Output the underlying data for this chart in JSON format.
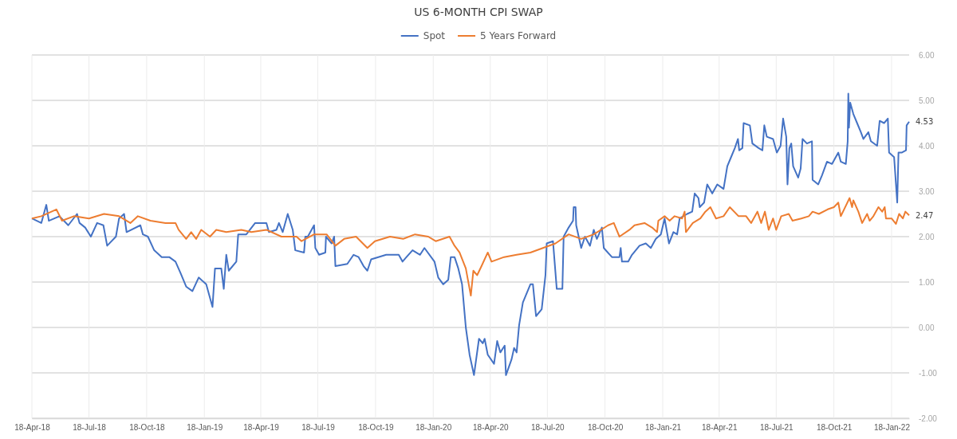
{
  "chart_data": {
    "type": "line",
    "title": "US 6-MONTH CPI SWAP",
    "legend": "top",
    "grid": true,
    "line_style": "solid",
    "marker": "none",
    "xlim": [
      "2018-04-18",
      "2022-02-15"
    ],
    "xticks": [
      {
        "value": "2018-04-18",
        "label": "18-Apr-18"
      },
      {
        "value": "2018-07-18",
        "label": "18-Jul-18"
      },
      {
        "value": "2018-10-18",
        "label": "18-Oct-18"
      },
      {
        "value": "2019-01-18",
        "label": "18-Jan-19"
      },
      {
        "value": "2019-04-18",
        "label": "18-Apr-19"
      },
      {
        "value": "2019-07-18",
        "label": "18-Jul-19"
      },
      {
        "value": "2019-10-18",
        "label": "18-Oct-19"
      },
      {
        "value": "2020-01-18",
        "label": "18-Jan-20"
      },
      {
        "value": "2020-04-18",
        "label": "18-Apr-20"
      },
      {
        "value": "2020-07-18",
        "label": "18-Jul-20"
      },
      {
        "value": "2020-10-18",
        "label": "18-Oct-20"
      },
      {
        "value": "2021-01-18",
        "label": "18-Jan-21"
      },
      {
        "value": "2021-04-18",
        "label": "18-Apr-21"
      },
      {
        "value": "2021-07-18",
        "label": "18-Jul-21"
      },
      {
        "value": "2021-10-18",
        "label": "18-Oct-21"
      },
      {
        "value": "2022-01-18",
        "label": "18-Jan-22"
      }
    ],
    "ylim": [
      -2,
      6
    ],
    "yticks": [
      {
        "value": -2,
        "label": "-2.00"
      },
      {
        "value": -1,
        "label": "-1.00"
      },
      {
        "value": 0,
        "label": "0.00"
      },
      {
        "value": 1,
        "label": "1.00"
      },
      {
        "value": 2,
        "label": "2.00"
      },
      {
        "value": 3,
        "label": "3.00"
      },
      {
        "value": 4,
        "label": "4.00"
      },
      {
        "value": 5,
        "label": "5.00"
      },
      {
        "value": 6,
        "label": "6.00"
      }
    ],
    "annotations": [
      {
        "text": "4.53",
        "x": "2022-02-15",
        "y": 4.53
      },
      {
        "text": "2.47",
        "x": "2022-02-15",
        "y": 2.47
      }
    ],
    "series": [
      {
        "name": "Spot",
        "color": "#4472c4",
        "x": [
          "2018-04-18",
          "2018-05-03",
          "2018-05-11",
          "2018-05-15",
          "2018-06-01",
          "2018-06-15",
          "2018-06-29",
          "2018-07-03",
          "2018-07-12",
          "2018-07-21",
          "2018-07-31",
          "2018-08-10",
          "2018-08-16",
          "2018-08-30",
          "2018-09-04",
          "2018-09-12",
          "2018-09-16",
          "2018-10-08",
          "2018-10-12",
          "2018-10-20",
          "2018-10-30",
          "2018-11-11",
          "2018-11-23",
          "2018-12-03",
          "2018-12-11",
          "2018-12-20",
          "2018-12-30",
          "2019-01-09",
          "2019-01-21",
          "2019-01-31",
          "2019-02-04",
          "2019-02-14",
          "2019-02-18",
          "2019-02-22",
          "2019-02-26",
          "2019-03-10",
          "2019-03-13",
          "2019-03-26",
          "2019-04-09",
          "2019-04-27",
          "2019-05-01",
          "2019-05-13",
          "2019-05-17",
          "2019-05-23",
          "2019-05-31",
          "2019-06-08",
          "2019-06-12",
          "2019-06-26",
          "2019-06-28",
          "2019-07-02",
          "2019-07-12",
          "2019-07-14",
          "2019-07-20",
          "2019-07-30",
          "2019-07-31",
          "2019-08-09",
          "2019-08-13",
          "2019-08-15",
          "2019-09-03",
          "2019-09-13",
          "2019-09-21",
          "2019-09-29",
          "2019-10-05",
          "2019-10-11",
          "2019-11-04",
          "2019-11-24",
          "2019-11-30",
          "2019-12-16",
          "2019-12-28",
          "2020-01-04",
          "2020-01-20",
          "2020-01-26",
          "2020-02-03",
          "2020-02-11",
          "2020-02-15",
          "2020-02-21",
          "2020-02-27",
          "2020-03-04",
          "2020-03-10",
          "2020-03-16",
          "2020-03-23",
          "2020-03-31",
          "2020-04-06",
          "2020-04-09",
          "2020-04-14",
          "2020-04-24",
          "2020-04-29",
          "2020-05-04",
          "2020-05-11",
          "2020-05-13",
          "2020-05-22",
          "2020-05-26",
          "2020-05-30",
          "2020-06-03",
          "2020-06-09",
          "2020-06-21",
          "2020-06-25",
          "2020-06-30",
          "2020-07-09",
          "2020-07-15",
          "2020-07-17",
          "2020-07-27",
          "2020-08-02",
          "2020-08-11",
          "2020-08-13",
          "2020-08-21",
          "2020-08-28",
          "2020-08-29",
          "2020-09-01",
          "2020-09-02",
          "2020-09-10",
          "2020-09-16",
          "2020-09-24",
          "2020-09-30",
          "2020-10-05",
          "2020-10-13",
          "2020-10-16",
          "2020-10-29",
          "2020-11-10",
          "2020-11-12",
          "2020-11-14",
          "2020-11-24",
          "2020-11-30",
          "2020-12-12",
          "2020-12-22",
          "2020-12-30",
          "2021-01-07",
          "2021-01-15",
          "2021-01-21",
          "2021-01-28",
          "2021-02-04",
          "2021-02-10",
          "2021-02-14",
          "2021-02-26",
          "2021-03-06",
          "2021-03-10",
          "2021-03-16",
          "2021-03-18",
          "2021-03-25",
          "2021-03-30",
          "2021-04-07",
          "2021-04-15",
          "2021-04-25",
          "2021-05-01",
          "2021-05-07",
          "2021-05-13",
          "2021-05-18",
          "2021-05-20",
          "2021-05-25",
          "2021-05-27",
          "2021-06-06",
          "2021-06-10",
          "2021-06-20",
          "2021-06-26",
          "2021-06-29",
          "2021-07-03",
          "2021-07-13",
          "2021-07-19",
          "2021-07-25",
          "2021-07-29",
          "2021-08-03",
          "2021-08-05",
          "2021-08-08",
          "2021-08-11",
          "2021-08-14",
          "2021-08-22",
          "2021-08-26",
          "2021-08-29",
          "2021-09-05",
          "2021-09-13",
          "2021-09-14",
          "2021-09-23",
          "2021-09-29",
          "2021-10-07",
          "2021-10-15",
          "2021-10-25",
          "2021-10-29",
          "2021-11-06",
          "2021-11-09",
          "2021-11-10",
          "2021-11-11",
          "2021-11-13",
          "2021-11-18",
          "2021-11-24",
          "2021-11-30",
          "2021-12-04",
          "2021-12-12",
          "2021-12-16",
          "2021-12-26",
          "2021-12-30",
          "2022-01-06",
          "2022-01-12",
          "2022-01-14",
          "2022-01-22",
          "2022-01-27",
          "2022-01-29",
          "2022-02-03",
          "2022-02-10",
          "2022-02-11",
          "2022-02-15"
        ],
        "values": [
          2.4,
          2.3,
          2.7,
          2.35,
          2.45,
          2.25,
          2.5,
          2.3,
          2.2,
          2.0,
          2.3,
          2.25,
          1.8,
          2.0,
          2.4,
          2.5,
          2.1,
          2.25,
          2.05,
          2.0,
          1.7,
          1.55,
          1.55,
          1.45,
          1.2,
          0.9,
          0.8,
          1.1,
          0.95,
          0.45,
          1.3,
          1.3,
          0.85,
          1.6,
          1.25,
          1.45,
          2.05,
          2.05,
          2.3,
          2.3,
          2.1,
          2.15,
          2.3,
          2.1,
          2.5,
          2.15,
          1.7,
          1.65,
          2.0,
          2.0,
          2.25,
          1.75,
          1.6,
          1.65,
          2.0,
          1.85,
          2.0,
          1.35,
          1.4,
          1.6,
          1.55,
          1.35,
          1.25,
          1.5,
          1.6,
          1.6,
          1.45,
          1.7,
          1.6,
          1.75,
          1.45,
          1.1,
          0.95,
          1.05,
          1.55,
          1.55,
          1.3,
          0.95,
          0.0,
          -0.6,
          -1.05,
          -0.25,
          -0.35,
          -0.25,
          -0.6,
          -0.8,
          -0.3,
          -0.55,
          -0.4,
          -1.05,
          -0.7,
          -0.45,
          -0.55,
          0.05,
          0.55,
          0.95,
          0.95,
          0.25,
          0.4,
          1.15,
          1.85,
          1.9,
          0.85,
          0.85,
          2.0,
          2.2,
          2.35,
          2.65,
          2.65,
          2.25,
          1.75,
          2.0,
          1.8,
          2.15,
          1.95,
          2.2,
          1.75,
          1.55,
          1.55,
          1.75,
          1.45,
          1.45,
          1.6,
          1.8,
          1.85,
          1.75,
          1.95,
          2.05,
          2.4,
          1.85,
          2.1,
          2.05,
          2.4,
          2.5,
          2.55,
          2.95,
          2.85,
          2.65,
          2.75,
          3.15,
          2.95,
          3.15,
          3.05,
          3.55,
          3.75,
          3.95,
          4.15,
          3.9,
          3.95,
          4.5,
          4.45,
          4.05,
          3.95,
          3.9,
          4.45,
          4.2,
          4.15,
          3.85,
          4.0,
          4.6,
          4.2,
          3.15,
          3.95,
          4.05,
          3.55,
          3.3,
          3.5,
          4.15,
          4.05,
          4.1,
          3.25,
          3.15,
          3.35,
          3.65,
          3.6,
          3.85,
          3.65,
          3.6,
          4.1,
          5.15,
          4.4,
          4.95,
          4.7,
          4.5,
          4.3,
          4.15,
          4.3,
          4.1,
          4.0,
          4.55,
          4.5,
          4.6,
          3.85,
          3.75,
          2.75,
          3.85,
          3.85,
          3.9,
          4.45,
          4.53
        ]
      },
      {
        "name": "5 Years Forward",
        "color": "#ed7d31",
        "x": [
          "2018-04-18",
          "2018-05-03",
          "2018-05-27",
          "2018-06-05",
          "2018-06-24",
          "2018-07-18",
          "2018-08-11",
          "2018-09-04",
          "2018-09-22",
          "2018-10-04",
          "2018-10-24",
          "2018-11-17",
          "2018-12-03",
          "2018-12-08",
          "2018-12-20",
          "2018-12-28",
          "2019-01-05",
          "2019-01-13",
          "2019-01-27",
          "2019-02-06",
          "2019-02-22",
          "2019-03-18",
          "2019-04-03",
          "2019-04-27",
          "2019-05-21",
          "2019-06-14",
          "2019-06-22",
          "2019-07-12",
          "2019-08-01",
          "2019-08-15",
          "2019-08-29",
          "2019-09-17",
          "2019-10-05",
          "2019-10-17",
          "2019-11-10",
          "2019-12-01",
          "2019-12-20",
          "2020-01-10",
          "2020-01-22",
          "2020-02-13",
          "2020-02-21",
          "2020-02-29",
          "2020-03-10",
          "2020-03-18",
          "2020-03-22",
          "2020-03-28",
          "2020-04-04",
          "2020-04-14",
          "2020-04-20",
          "2020-05-10",
          "2020-05-30",
          "2020-06-21",
          "2020-07-11",
          "2020-07-31",
          "2020-08-21",
          "2020-09-10",
          "2020-09-30",
          "2020-10-23",
          "2020-11-01",
          "2020-11-10",
          "2020-11-26",
          "2020-12-04",
          "2020-12-20",
          "2021-01-01",
          "2021-01-09",
          "2021-01-11",
          "2021-01-21",
          "2021-01-29",
          "2021-02-06",
          "2021-02-18",
          "2021-02-22",
          "2021-02-24",
          "2021-03-07",
          "2021-03-19",
          "2021-03-27",
          "2021-04-04",
          "2021-04-13",
          "2021-04-25",
          "2021-05-05",
          "2021-05-19",
          "2021-05-31",
          "2021-06-08",
          "2021-06-18",
          "2021-06-24",
          "2021-06-30",
          "2021-07-06",
          "2021-07-13",
          "2021-07-18",
          "2021-07-26",
          "2021-08-07",
          "2021-08-13",
          "2021-08-27",
          "2021-09-08",
          "2021-09-14",
          "2021-09-24",
          "2021-10-08",
          "2021-10-18",
          "2021-10-25",
          "2021-10-29",
          "2021-11-12",
          "2021-11-16",
          "2021-11-18",
          "2021-11-26",
          "2021-12-02",
          "2021-12-10",
          "2021-12-14",
          "2021-12-20",
          "2021-12-28",
          "2022-01-03",
          "2022-01-07",
          "2022-01-09",
          "2022-01-18",
          "2022-01-25",
          "2022-01-30",
          "2022-02-05",
          "2022-02-09",
          "2022-02-15"
        ],
        "values": [
          2.4,
          2.45,
          2.6,
          2.35,
          2.45,
          2.4,
          2.5,
          2.45,
          2.3,
          2.45,
          2.35,
          2.3,
          2.3,
          2.15,
          1.95,
          2.1,
          1.95,
          2.15,
          2.0,
          2.15,
          2.1,
          2.15,
          2.1,
          2.15,
          2.0,
          2.0,
          1.9,
          2.05,
          2.05,
          1.8,
          1.95,
          2.0,
          1.75,
          1.9,
          2.0,
          1.95,
          2.05,
          2.0,
          1.9,
          2.0,
          1.8,
          1.65,
          1.3,
          0.7,
          1.25,
          1.15,
          1.35,
          1.65,
          1.45,
          1.55,
          1.6,
          1.65,
          1.75,
          1.85,
          2.05,
          1.95,
          2.05,
          2.25,
          2.3,
          2.0,
          2.15,
          2.25,
          2.3,
          2.2,
          2.1,
          2.35,
          2.45,
          2.35,
          2.45,
          2.4,
          2.55,
          2.1,
          2.3,
          2.4,
          2.55,
          2.65,
          2.4,
          2.45,
          2.65,
          2.45,
          2.45,
          2.3,
          2.55,
          2.3,
          2.55,
          2.15,
          2.4,
          2.15,
          2.45,
          2.5,
          2.35,
          2.4,
          2.45,
          2.55,
          2.5,
          2.6,
          2.65,
          2.75,
          2.45,
          2.85,
          2.65,
          2.8,
          2.55,
          2.3,
          2.5,
          2.35,
          2.45,
          2.65,
          2.55,
          2.65,
          2.4,
          2.4,
          2.28,
          2.5,
          2.4,
          2.55,
          2.47
        ]
      }
    ]
  }
}
